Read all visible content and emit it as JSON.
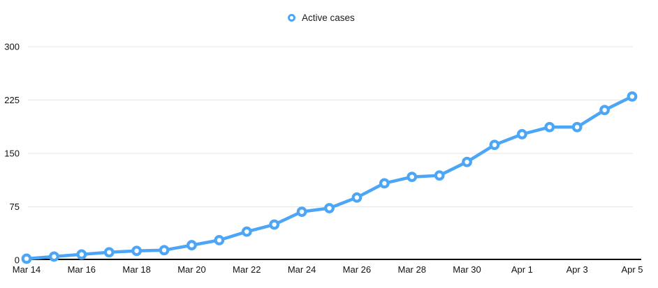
{
  "chart_data": {
    "type": "line",
    "title": "",
    "x": [
      "Mar 14",
      "Mar 15",
      "Mar 16",
      "Mar 17",
      "Mar 18",
      "Mar 19",
      "Mar 20",
      "Mar 21",
      "Mar 22",
      "Mar 23",
      "Mar 24",
      "Mar 25",
      "Mar 26",
      "Mar 27",
      "Mar 28",
      "Mar 29",
      "Mar 30",
      "Mar 31",
      "Apr 1",
      "Apr 2",
      "Apr 3",
      "Apr 4",
      "Apr 5"
    ],
    "x_tick_labels_shown": [
      "Mar 14",
      "Mar 16",
      "Mar 18",
      "Mar 20",
      "Mar 22",
      "Mar 24",
      "Mar 26",
      "Mar 28",
      "Mar 30",
      "Apr 1",
      "Apr 3",
      "Apr 5"
    ],
    "series": [
      {
        "name": "Active cases",
        "values": [
          2,
          5,
          8,
          11,
          13,
          14,
          21,
          28,
          40,
          50,
          68,
          73,
          88,
          108,
          117,
          119,
          138,
          162,
          177,
          187,
          187,
          211,
          230
        ],
        "color": "#4da6f5",
        "marker": "hollow-circle"
      }
    ],
    "xlabel": "",
    "ylabel": "",
    "ylim": [
      0,
      300
    ],
    "yticks": [
      0,
      75,
      150,
      225,
      300
    ],
    "grid": "horizontal-only",
    "grid_color": "#e7e7e7",
    "axis_line_color": "#000000",
    "text_color": "#111111",
    "legend_position": "top-center",
    "legend_marker": "hollow-circle"
  }
}
